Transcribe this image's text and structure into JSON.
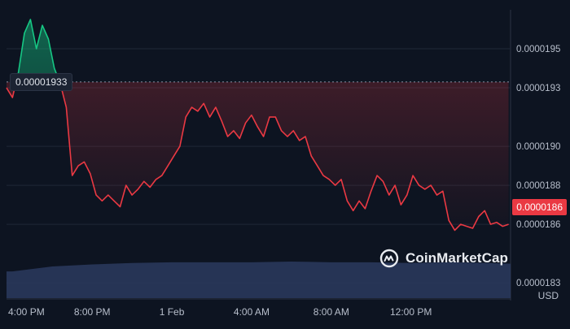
{
  "currency": "USD",
  "watermark": "CoinMarketCap",
  "watermark_icon": "coinmarketcap-logo-icon",
  "colors": {
    "background": "#0d1421",
    "up_line": "#16c784",
    "down_line": "#ea3943",
    "volume": "#2b3a5e",
    "grid": "#1f2737",
    "label_bg_last": "#ea3943"
  },
  "chart_data": {
    "type": "area",
    "baseline": 1.933e-05,
    "baseline_label": "0.00001933",
    "last_value_label": "0.0000186",
    "y_ticks": [
      "0.0000195",
      "0.0000193",
      "0.0000190",
      "0.0000188",
      "0.0000186",
      "0.0000183"
    ],
    "y_tick_values": [
      1.95e-05,
      1.93e-05,
      1.9e-05,
      1.88e-05,
      1.86e-05,
      1.83e-05
    ],
    "ylim": [
      1.823e-05,
      1.97e-05
    ],
    "x_ticks": [
      "4:00 PM",
      "8:00 PM",
      "1 Feb",
      "4:00 AM",
      "8:00 AM",
      "12:00 PM"
    ],
    "x_tick_hours": [
      0,
      4,
      8,
      12,
      16,
      20
    ],
    "xlim_hours": [
      -0.3,
      25
    ],
    "grid": true,
    "series": [
      {
        "x_hours": [
          -0.3,
          0,
          0.3,
          0.6,
          0.9,
          1.2,
          1.5,
          1.8,
          2.1,
          2.4,
          2.7,
          3.0,
          3.3,
          3.6,
          3.9,
          4.2,
          4.5,
          4.8,
          5.1,
          5.4,
          5.7,
          6.0,
          6.3,
          6.6,
          6.9,
          7.2,
          7.5,
          7.8,
          8.1,
          8.4,
          8.7,
          9.0,
          9.3,
          9.6,
          9.9,
          10.2,
          10.5,
          10.8,
          11.1,
          11.4,
          11.7,
          12.0,
          12.3,
          12.6,
          12.9,
          13.2,
          13.5,
          13.8,
          14.1,
          14.4,
          14.7,
          15.0,
          15.3,
          15.6,
          15.9,
          16.2,
          16.5,
          16.8,
          17.1,
          17.4,
          17.7,
          18.0,
          18.3,
          18.6,
          18.9,
          19.2,
          19.5,
          19.8,
          20.1,
          20.4,
          20.7,
          21.0,
          21.3,
          21.6,
          21.9,
          22.2,
          22.5,
          22.8,
          23.1,
          23.4,
          23.7,
          24.0,
          24.3,
          24.6,
          24.9
        ],
        "y": [
          1.93e-05,
          1.925e-05,
          1.938e-05,
          1.958e-05,
          1.965e-05,
          1.95e-05,
          1.962e-05,
          1.955e-05,
          1.94e-05,
          1.932e-05,
          1.92e-05,
          1.885e-05,
          1.89e-05,
          1.892e-05,
          1.886e-05,
          1.875e-05,
          1.872e-05,
          1.875e-05,
          1.872e-05,
          1.869e-05,
          1.88e-05,
          1.875e-05,
          1.878e-05,
          1.882e-05,
          1.879e-05,
          1.883e-05,
          1.885e-05,
          1.89e-05,
          1.895e-05,
          1.9e-05,
          1.915e-05,
          1.92e-05,
          1.918e-05,
          1.922e-05,
          1.915e-05,
          1.92e-05,
          1.913e-05,
          1.905e-05,
          1.908e-05,
          1.904e-05,
          1.912e-05,
          1.916e-05,
          1.91e-05,
          1.905e-05,
          1.915e-05,
          1.915e-05,
          1.908e-05,
          1.905e-05,
          1.908e-05,
          1.903e-05,
          1.905e-05,
          1.895e-05,
          1.89e-05,
          1.885e-05,
          1.883e-05,
          1.88e-05,
          1.883e-05,
          1.872e-05,
          1.867e-05,
          1.872e-05,
          1.868e-05,
          1.877e-05,
          1.885e-05,
          1.882e-05,
          1.875e-05,
          1.88e-05,
          1.87e-05,
          1.875e-05,
          1.885e-05,
          1.88e-05,
          1.878e-05,
          1.88e-05,
          1.875e-05,
          1.877e-05,
          1.862e-05,
          1.857e-05,
          1.86e-05,
          1.859e-05,
          1.858e-05,
          1.864e-05,
          1.867e-05,
          1.86e-05,
          1.861e-05,
          1.859e-05,
          1.86e-05
        ]
      }
    ],
    "volume": {
      "x_hours": [
        -0.3,
        0,
        2,
        4,
        6,
        8,
        10,
        12,
        14,
        16,
        18,
        20,
        22,
        24,
        25
      ],
      "relative": [
        0.38,
        0.38,
        0.45,
        0.48,
        0.5,
        0.51,
        0.51,
        0.51,
        0.52,
        0.51,
        0.51,
        0.5,
        0.51,
        0.5,
        0.49
      ]
    }
  }
}
